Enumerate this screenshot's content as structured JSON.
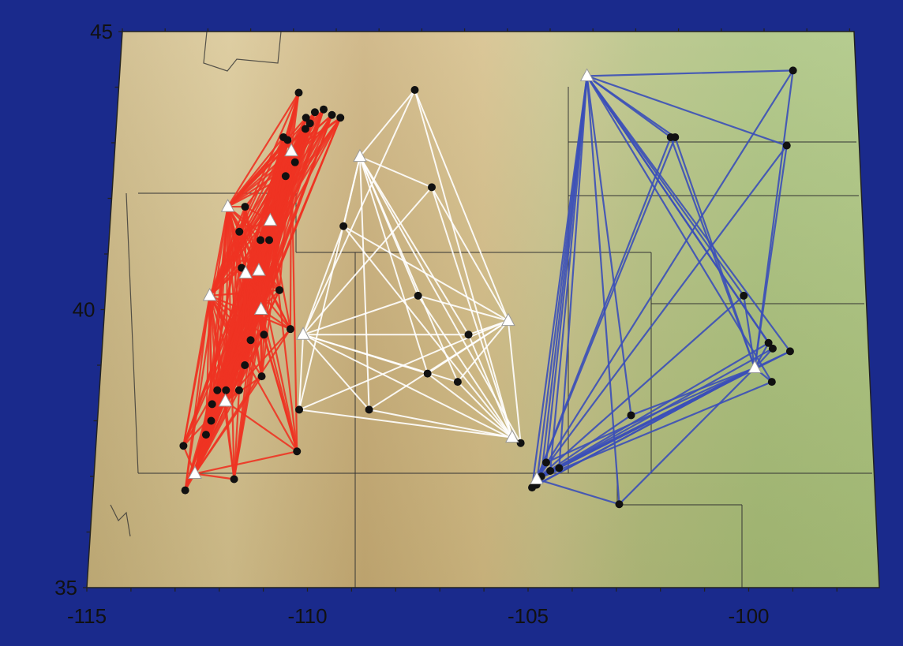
{
  "axes": {
    "lon_ticks": [
      {
        "value": -115,
        "label": "-115"
      },
      {
        "value": -110,
        "label": "-110"
      },
      {
        "value": -105,
        "label": "-105"
      },
      {
        "value": -100,
        "label": "-100"
      }
    ],
    "lat_ticks": [
      {
        "value": 45,
        "label": "45"
      },
      {
        "value": 40,
        "label": "40"
      },
      {
        "value": 35,
        "label": "35"
      }
    ],
    "lon_range": [
      -115,
      -97.9
    ],
    "lat_range": [
      35,
      45
    ]
  },
  "colors": {
    "background": "#1a2a8c",
    "red_paths": "#ee3322",
    "white_paths": "#ffffff",
    "blue_paths": "#3b4fb8",
    "station": "#111111",
    "source": "#ffffff"
  },
  "groups": [
    {
      "id": "red",
      "color": "#ee3322",
      "sources": [
        [
          -112.3,
          41.85
        ],
        [
          -112.6,
          40.25
        ],
        [
          -112.1,
          38.35
        ],
        [
          -112.7,
          37.05
        ],
        [
          -110.9,
          42.85
        ],
        [
          -111.3,
          41.6
        ],
        [
          -111.5,
          40.7
        ],
        [
          -111.8,
          40.65
        ],
        [
          -111.4,
          40.0
        ]
      ],
      "stations": [
        [
          -110.8,
          43.9
        ],
        [
          -110.6,
          43.45
        ],
        [
          -110.4,
          43.55
        ],
        [
          -110.2,
          43.6
        ],
        [
          -110.0,
          43.5
        ],
        [
          -109.8,
          43.45
        ],
        [
          -110.6,
          43.25
        ],
        [
          -110.5,
          43.35
        ],
        [
          -111.1,
          43.1
        ],
        [
          -111.0,
          43.05
        ],
        [
          -110.8,
          42.65
        ],
        [
          -111.0,
          42.4
        ],
        [
          -111.9,
          41.85
        ],
        [
          -112.0,
          41.4
        ],
        [
          -111.5,
          41.25
        ],
        [
          -111.3,
          41.25
        ],
        [
          -111.9,
          40.75
        ],
        [
          -111.0,
          40.35
        ],
        [
          -110.7,
          39.65
        ],
        [
          -111.3,
          39.55
        ],
        [
          -111.6,
          39.45
        ],
        [
          -111.7,
          39.0
        ],
        [
          -111.3,
          38.8
        ],
        [
          -112.3,
          38.55
        ],
        [
          -112.1,
          38.55
        ],
        [
          -111.8,
          38.55
        ],
        [
          -112.4,
          38.3
        ],
        [
          -112.4,
          38.0
        ],
        [
          -112.5,
          37.75
        ],
        [
          -113.0,
          37.55
        ],
        [
          -110.4,
          37.45
        ],
        [
          -111.8,
          36.95
        ],
        [
          -112.9,
          36.75
        ]
      ]
    },
    {
      "id": "white",
      "color": "#ffffff",
      "sources": [
        [
          -109.3,
          42.75
        ],
        [
          -110.4,
          39.55
        ],
        [
          -105.7,
          39.8
        ],
        [
          -105.5,
          37.7
        ]
      ],
      "stations": [
        [
          -108.1,
          43.95
        ],
        [
          -107.6,
          42.2
        ],
        [
          -109.6,
          41.5
        ],
        [
          -107.8,
          40.25
        ],
        [
          -106.6,
          39.55
        ],
        [
          -107.5,
          38.85
        ],
        [
          -106.8,
          38.7
        ],
        [
          -108.8,
          38.2
        ],
        [
          -105.3,
          37.6
        ],
        [
          -110.4,
          38.2
        ]
      ]
    },
    {
      "id": "blue",
      "color": "#3b4fb8",
      "sources": [
        [
          -104.1,
          44.2
        ],
        [
          -100.0,
          38.95
        ],
        [
          -104.9,
          36.95
        ]
      ],
      "stations": [
        [
          -99.3,
          44.3
        ],
        [
          -99.4,
          42.95
        ],
        [
          -102.1,
          43.1
        ],
        [
          -102.0,
          43.1
        ],
        [
          -100.3,
          40.25
        ],
        [
          -99.7,
          39.4
        ],
        [
          -99.6,
          39.3
        ],
        [
          -99.2,
          39.25
        ],
        [
          -99.6,
          38.7
        ],
        [
          -102.8,
          38.1
        ],
        [
          -103.0,
          36.5
        ],
        [
          -104.7,
          37.25
        ],
        [
          -104.8,
          37.0
        ],
        [
          -104.6,
          37.1
        ],
        [
          -104.4,
          37.15
        ],
        [
          -105.0,
          36.8
        ],
        [
          -104.9,
          36.85
        ]
      ]
    }
  ]
}
